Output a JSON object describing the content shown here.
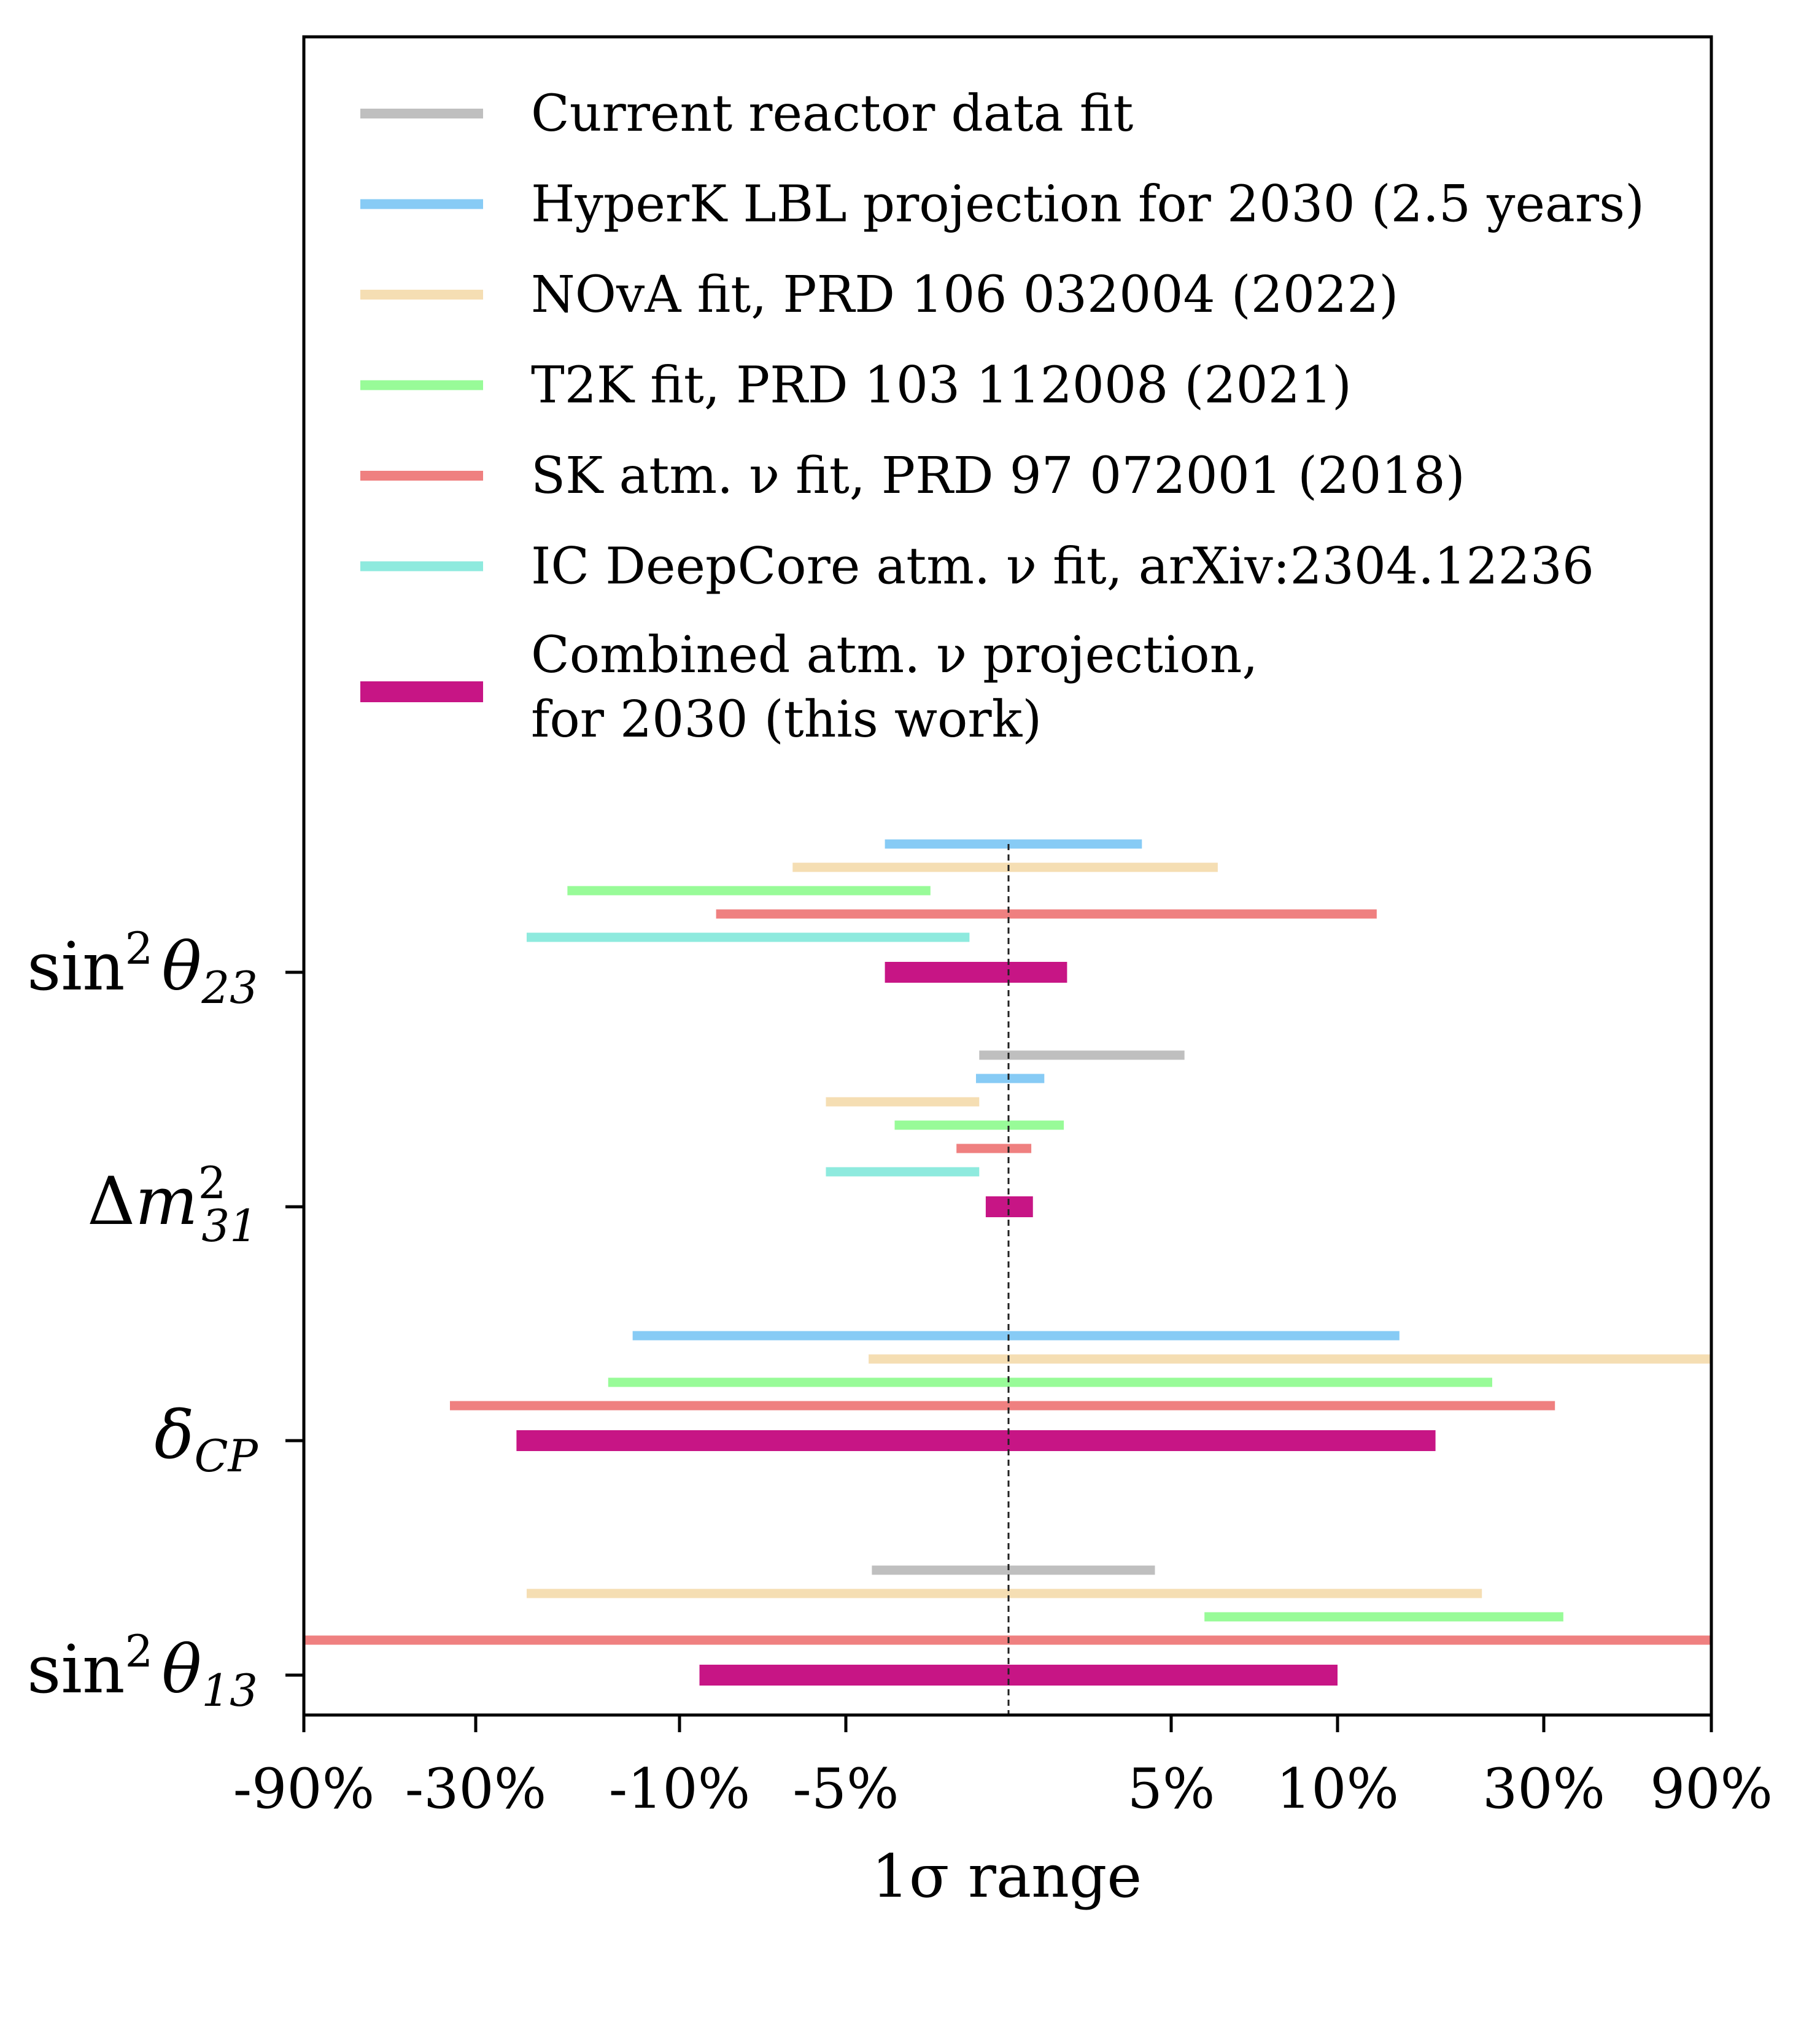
{
  "chart_data": {
    "type": "horizontal-range",
    "xlabel": "1σ range",
    "x_tick_labels": [
      "-90%",
      "-30%",
      "-10%",
      "-5%",
      "5%",
      "10%",
      "30%",
      "90%"
    ],
    "reference_line": "0%",
    "colors": {
      "reactor": "#bfbfbf",
      "hyperk": "#87cbf5",
      "nova": "#f5deb3",
      "t2k": "#98fb98",
      "sk": "#ef8080",
      "icdc": "#8eeade",
      "combined": "#c71585"
    },
    "legend": [
      {
        "key": "reactor",
        "label": "Current reactor data fit"
      },
      {
        "key": "hyperk",
        "label": "HyperK LBL projection for 2030 (2.5 years)"
      },
      {
        "key": "nova",
        "label": "NOvA fit, PRD 106 032004 (2022)"
      },
      {
        "key": "t2k",
        "label": "T2K fit, PRD 103 112008 (2021)"
      },
      {
        "key": "sk",
        "label": "SK atm. ν fit, PRD 97 072001 (2018)"
      },
      {
        "key": "icdc",
        "label": "IC DeepCore atm. ν fit, arXiv:2304.12236"
      },
      {
        "key": "combined",
        "label_line1": "Combined atm. ν projection,",
        "label_line2": "for 2030 (this work)"
      }
    ],
    "parameters": [
      {
        "id": "s23",
        "label": {
          "pre": "sin",
          "sup": "2",
          "base": "θ",
          "sub": "23"
        },
        "ranges": [
          {
            "key": "hyperk",
            "low": -3.8,
            "high": 4.1
          },
          {
            "key": "nova",
            "low": -6.6,
            "high": 6.4
          },
          {
            "key": "t2k",
            "low": -21,
            "high": -2.4
          },
          {
            "key": "sk",
            "low": -8.9,
            "high": 13.8
          },
          {
            "key": "icdc",
            "low": -25,
            "high": -1.2
          },
          {
            "key": "combined",
            "low": -3.8,
            "high": 1.8
          }
        ]
      },
      {
        "id": "dm31",
        "label": {
          "pre": "Δm",
          "sup": "2",
          "sub": "31"
        },
        "ranges": [
          {
            "key": "reactor",
            "low": -0.9,
            "high": 5.4
          },
          {
            "key": "hyperk",
            "low": -1.0,
            "high": 1.1
          },
          {
            "key": "nova",
            "low": -5.6,
            "high": -0.9
          },
          {
            "key": "t2k",
            "low": -3.5,
            "high": 1.7
          },
          {
            "key": "sk",
            "low": -1.6,
            "high": 0.7
          },
          {
            "key": "icdc",
            "low": -5.6,
            "high": -0.9
          },
          {
            "key": "combined",
            "low": -0.7,
            "high": 0.75
          }
        ]
      },
      {
        "id": "dcp",
        "label": {
          "base": "δ",
          "sub": "CP"
        },
        "ranges": [
          {
            "key": "hyperk",
            "low": -14.6,
            "high": 16
          },
          {
            "key": "nova",
            "low": -4.3,
            "high": 90
          },
          {
            "key": "t2k",
            "low": -17,
            "high": 25
          },
          {
            "key": "sk",
            "low": -39,
            "high": 34
          },
          {
            "key": "combined",
            "low": -26,
            "high": 19.5
          }
        ]
      },
      {
        "id": "s13",
        "label": {
          "pre": "sin",
          "sup": "2",
          "base": "θ",
          "sub": "13"
        },
        "ranges": [
          {
            "key": "reactor",
            "low": -4.2,
            "high": 4.5
          },
          {
            "key": "nova",
            "low": -25,
            "high": 24
          },
          {
            "key": "t2k",
            "low": 6,
            "high": 37
          },
          {
            "key": "sk",
            "low": -90,
            "high": 90
          },
          {
            "key": "combined",
            "low": -9.4,
            "high": 10
          }
        ]
      }
    ]
  }
}
